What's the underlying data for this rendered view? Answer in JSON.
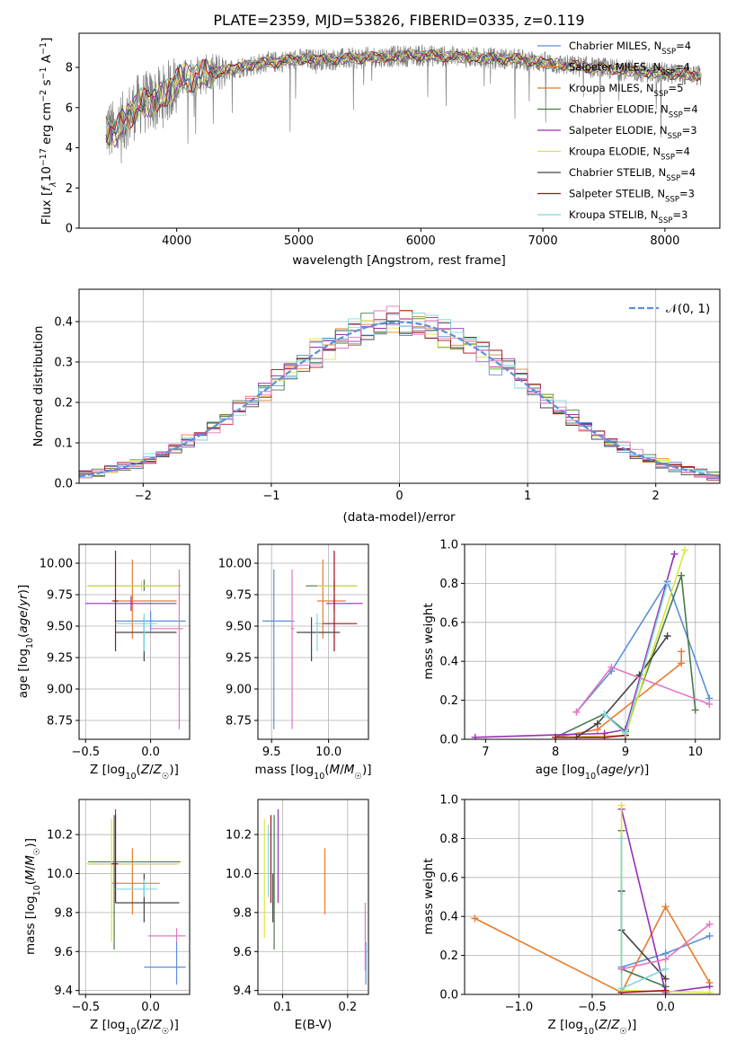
{
  "figure": {
    "title": "PLATE=2359, MJD=53826, FIBERID=0335, z=0.119"
  },
  "colors": {
    "spectrum": "#808080",
    "normal_curve": "#5b8fd9",
    "grid": "#b0b0b0"
  },
  "chart_data": [
    {
      "id": "spectrum",
      "type": "line",
      "title": "PLATE=2359, MJD=53826, FIBERID=0335, z=0.119",
      "xlabel": "wavelength [Angstrom, rest frame]",
      "ylabel": "Flux [f_λ10⁻¹⁷ erg cm⁻² s⁻¹ A⁻¹]",
      "xlim": [
        3200,
        8450
      ],
      "ylim": [
        0,
        9.7
      ],
      "xticks": [
        4000,
        5000,
        6000,
        7000,
        8000
      ],
      "yticks": [
        0,
        2,
        4,
        6,
        8
      ],
      "grid": false,
      "legend_position": "top-right",
      "continuum": {
        "x": [
          3420,
          3500,
          3600,
          3700,
          3800,
          3900,
          4000,
          4100,
          4200,
          4300,
          4500,
          4700,
          5000,
          5300,
          5600,
          6000,
          6400,
          6800,
          7200,
          7600,
          8000,
          8300
        ],
        "y": [
          5.0,
          4.7,
          5.6,
          6.2,
          6.3,
          6.6,
          7.3,
          7.5,
          7.6,
          7.7,
          8.0,
          8.2,
          8.4,
          8.4,
          8.5,
          8.6,
          8.5,
          8.4,
          8.1,
          7.9,
          7.7,
          7.6
        ]
      },
      "series": [
        {
          "name": "Chabrier MILES, N_SSP=4",
          "color": "#5b8fd9"
        },
        {
          "name": "Salpeter MILES, N_SSP=4",
          "color": "#e87b2c"
        },
        {
          "name": "Kroupa MILES, N_SSP=5",
          "color": "#de7f1f"
        },
        {
          "name": "Chabrier ELODIE, N_SSP=4",
          "color": "#4a7a4a"
        },
        {
          "name": "Salpeter ELODIE, N_SSP=3",
          "color": "#9a2fb5"
        },
        {
          "name": "Kroupa ELODIE, N_SSP=4",
          "color": "#dce53c"
        },
        {
          "name": "Chabrier STELIB, N_SSP=4",
          "color": "#444444"
        },
        {
          "name": "Salpeter STELIB, N_SSP=3",
          "color": "#a0101a"
        },
        {
          "name": "Kroupa STELIB, N_SSP=3",
          "color": "#7fd8e0"
        }
      ],
      "legend_labels": [
        {
          "main": "Chabrier MILES, N",
          "sub": "SSP",
          "tail": "=4"
        },
        {
          "main": "Salpeter MILES, N",
          "sub": "SSP",
          "tail": "=4"
        },
        {
          "main": "Kroupa MILES, N",
          "sub": "SSP",
          "tail": "=5"
        },
        {
          "main": "Chabrier ELODIE, N",
          "sub": "SSP",
          "tail": "=4"
        },
        {
          "main": "Salpeter ELODIE, N",
          "sub": "SSP",
          "tail": "=3"
        },
        {
          "main": "Kroupa ELODIE, N",
          "sub": "SSP",
          "tail": "=4"
        },
        {
          "main": "Chabrier STELIB, N",
          "sub": "SSP",
          "tail": "=4"
        },
        {
          "main": "Salpeter STELIB, N",
          "sub": "SSP",
          "tail": "=3"
        },
        {
          "main": "Kroupa STELIB, N",
          "sub": "SSP",
          "tail": "=3"
        }
      ]
    },
    {
      "id": "residuals",
      "type": "histogram",
      "xlabel": "(data-model)/error",
      "ylabel": "Normed distribution",
      "xlim": [
        -2.5,
        2.5
      ],
      "ylim": [
        0,
        0.48
      ],
      "xticks": [
        -2,
        -1,
        0,
        1,
        2
      ],
      "yticks": [
        0.0,
        0.1,
        0.2,
        0.3,
        0.4
      ],
      "grid": true,
      "bin_width": 0.1,
      "legend": {
        "label": "𝒩(0, 1)",
        "position": "top-right"
      },
      "series_colors": [
        "#5b8fd9",
        "#e87b2c",
        "#4a7a4a",
        "#9a2fb5",
        "#dce53c",
        "#444444",
        "#a0101a",
        "#7fd8e0",
        "#e377c2"
      ]
    },
    {
      "id": "age-vs-Z",
      "type": "errorbar",
      "xlabel": "Z [log₁₀(Z/Z☉)]",
      "ylabel": "age [log₁₀(age/yr)]",
      "xlim": [
        -0.55,
        0.3
      ],
      "ylim": [
        8.6,
        10.15
      ],
      "xticks": [
        -0.5,
        0.0
      ],
      "yticks": [
        8.75,
        9.0,
        9.25,
        9.5,
        9.75,
        10.0
      ],
      "grid": true,
      "points": [
        {
          "color": "#5b8fd9",
          "x": 0.0,
          "y": 9.54,
          "x_lo": -0.27,
          "x_hi": 0.27,
          "y_lo": 9.46,
          "y_hi": 9.62
        },
        {
          "color": "#e87b2c",
          "x": -0.14,
          "y": 9.7,
          "x_lo": -0.3,
          "x_hi": 0.2,
          "y_lo": 9.4,
          "y_hi": 10.03
        },
        {
          "color": "#4a7a4a",
          "x": -0.05,
          "y": 9.82,
          "x_lo": -0.48,
          "x_hi": 0.23,
          "y_lo": 9.78,
          "y_hi": 9.87
        },
        {
          "color": "#9a2fb5",
          "x": -0.15,
          "y": 9.68,
          "x_lo": -0.5,
          "x_hi": 0.2,
          "y_lo": 9.62,
          "y_hi": 9.74
        },
        {
          "color": "#dce53c",
          "x": -0.07,
          "y": 9.82,
          "x_lo": -0.49,
          "x_hi": 0.22,
          "y_lo": 9.78,
          "y_hi": 9.86
        },
        {
          "color": "#444444",
          "x": -0.05,
          "y": 9.45,
          "x_lo": -0.27,
          "x_hi": 0.2,
          "y_lo": 9.22,
          "y_hi": 9.57
        },
        {
          "color": "#a0101a",
          "x": -0.27,
          "y": 9.7,
          "x_lo": -0.29,
          "x_hi": -0.25,
          "y_lo": 9.3,
          "y_hi": 10.1
        },
        {
          "color": "#7fd8e0",
          "x": -0.05,
          "y": 9.52,
          "x_lo": -0.27,
          "x_hi": 0.05,
          "y_lo": 9.3,
          "y_hi": 9.6
        },
        {
          "color": "#e377c2",
          "x": 0.22,
          "y": 9.48,
          "x_lo": 0.0,
          "x_hi": 0.25,
          "y_lo": 8.68,
          "y_hi": 9.95
        }
      ]
    },
    {
      "id": "age-vs-mass",
      "type": "errorbar",
      "xlabel": "mass [log₁₀(M/M☉)]",
      "ylabel": "",
      "xlim": [
        9.38,
        10.35
      ],
      "ylim": [
        8.6,
        10.15
      ],
      "xticks": [
        9.5,
        10.0
      ],
      "yticks": [
        8.75,
        9.0,
        9.25,
        9.5,
        9.75,
        10.0
      ],
      "grid": true,
      "points": [
        {
          "color": "#5b8fd9",
          "x": 9.52,
          "y": 9.54,
          "x_lo": 9.42,
          "x_hi": 9.7,
          "y_lo": 8.68,
          "y_hi": 9.95
        },
        {
          "color": "#e87b2c",
          "x": 9.95,
          "y": 9.7,
          "x_lo": 9.9,
          "x_hi": 10.15,
          "y_lo": 9.4,
          "y_hi": 10.03
        },
        {
          "color": "#4a7a4a",
          "x": 10.05,
          "y": 9.82,
          "x_lo": 9.8,
          "x_hi": 10.25,
          "y_lo": 9.78,
          "y_hi": 9.87
        },
        {
          "color": "#9a2fb5",
          "x": 10.05,
          "y": 9.68,
          "x_lo": 9.98,
          "x_hi": 10.3,
          "y_lo": 9.62,
          "y_hi": 9.74
        },
        {
          "color": "#dce53c",
          "x": 10.05,
          "y": 9.82,
          "x_lo": 9.9,
          "x_hi": 10.25,
          "y_lo": 9.78,
          "y_hi": 9.86
        },
        {
          "color": "#444444",
          "x": 9.85,
          "y": 9.45,
          "x_lo": 9.72,
          "x_hi": 10.1,
          "y_lo": 9.22,
          "y_hi": 9.57
        },
        {
          "color": "#a0101a",
          "x": 10.05,
          "y": 9.52,
          "x_lo": 9.95,
          "x_hi": 10.25,
          "y_lo": 9.3,
          "y_hi": 10.1
        },
        {
          "color": "#7fd8e0",
          "x": 9.9,
          "y": 9.52,
          "x_lo": 9.88,
          "x_hi": 9.95,
          "y_lo": 9.3,
          "y_hi": 9.6
        },
        {
          "color": "#e377c2",
          "x": 9.68,
          "y": 9.48,
          "x_lo": 9.67,
          "x_hi": 9.7,
          "y_lo": 8.68,
          "y_hi": 9.95
        }
      ]
    },
    {
      "id": "mass-weight-vs-age",
      "type": "line",
      "xlabel": "age [log₁₀(age/yr)]",
      "ylabel": "mass weight",
      "xlim": [
        6.7,
        10.35
      ],
      "ylim": [
        0,
        1.0
      ],
      "xticks": [
        7,
        8,
        9,
        10
      ],
      "yticks": [
        0.0,
        0.2,
        0.4,
        0.6,
        0.8,
        1.0
      ],
      "grid": true,
      "series": [
        {
          "color": "#5b8fd9",
          "x": [
            8.3,
            8.8,
            9.6,
            10.2
          ],
          "y": [
            0.14,
            0.35,
            0.81,
            0.21
          ]
        },
        {
          "color": "#e87b2c",
          "x": [
            8.0,
            8.6,
            9.8,
            9.8
          ],
          "y": [
            0.01,
            0.05,
            0.39,
            0.45
          ]
        },
        {
          "color": "#4a7a4a",
          "x": [
            8.0,
            8.7,
            9.0,
            9.8,
            10.0
          ],
          "y": [
            0.01,
            0.13,
            0.04,
            0.84,
            0.15
          ]
        },
        {
          "color": "#9a2fb5",
          "x": [
            6.85,
            8.7,
            9.0,
            9.7
          ],
          "y": [
            0.01,
            0.03,
            0.05,
            0.95
          ]
        },
        {
          "color": "#dce53c",
          "x": [
            8.0,
            9.0,
            9.85
          ],
          "y": [
            0.01,
            0.02,
            0.97
          ]
        },
        {
          "color": "#444444",
          "x": [
            8.3,
            8.6,
            9.2,
            9.6
          ],
          "y": [
            0.01,
            0.08,
            0.33,
            0.53
          ]
        },
        {
          "color": "#a0101a",
          "x": [
            8.0,
            8.7,
            9.0
          ],
          "y": [
            0.01,
            0.01,
            0.02
          ]
        },
        {
          "color": "#7fd8e0",
          "x": [
            8.7,
            9.0,
            9.6
          ],
          "y": [
            0.13,
            0.03,
            0.8
          ]
        },
        {
          "color": "#e377c2",
          "x": [
            8.3,
            8.8,
            10.2
          ],
          "y": [
            0.14,
            0.37,
            0.18
          ]
        }
      ]
    },
    {
      "id": "mass-vs-Z",
      "type": "errorbar",
      "xlabel": "Z [log₁₀(Z/Z☉)]",
      "ylabel": "mass [log₁₀(M/M☉)]",
      "xlim": [
        -0.55,
        0.3
      ],
      "ylim": [
        9.38,
        10.38
      ],
      "xticks": [
        -0.5,
        0.0
      ],
      "yticks": [
        9.4,
        9.6,
        9.8,
        10.0,
        10.2
      ],
      "grid": true,
      "points": [
        {
          "color": "#5b8fd9",
          "x": 0.2,
          "y": 9.52,
          "x_lo": -0.05,
          "x_hi": 0.27,
          "y_lo": 9.43,
          "y_hi": 9.65
        },
        {
          "color": "#e87b2c",
          "x": -0.14,
          "y": 9.95,
          "x_lo": -0.3,
          "x_hi": 0.07,
          "y_lo": 9.79,
          "y_hi": 10.13
        },
        {
          "color": "#4a7a4a",
          "x": -0.28,
          "y": 10.06,
          "x_lo": -0.48,
          "x_hi": 0.23,
          "y_lo": 9.61,
          "y_hi": 10.3
        },
        {
          "color": "#9a2fb5",
          "x": -0.27,
          "y": 10.05,
          "x_lo": -0.48,
          "x_hi": 0.2,
          "y_lo": 9.85,
          "y_hi": 10.33
        },
        {
          "color": "#dce53c",
          "x": -0.3,
          "y": 10.05,
          "x_lo": -0.49,
          "x_hi": 0.22,
          "y_lo": 9.65,
          "y_hi": 10.28
        },
        {
          "color": "#444444",
          "x": -0.05,
          "y": 9.85,
          "x_lo": -0.27,
          "x_hi": 0.22,
          "y_lo": 9.75,
          "y_hi": 10.0
        },
        {
          "color": "#a0101a",
          "x": -0.27,
          "y": 10.05,
          "x_lo": -0.3,
          "x_hi": -0.25,
          "y_lo": 9.85,
          "y_hi": 10.3
        },
        {
          "color": "#7fd8e0",
          "x": -0.05,
          "y": 9.92,
          "x_lo": -0.27,
          "x_hi": 0.05,
          "y_lo": 9.88,
          "y_hi": 9.97
        },
        {
          "color": "#e377c2",
          "x": 0.2,
          "y": 9.68,
          "x_lo": -0.02,
          "x_hi": 0.27,
          "y_lo": 9.65,
          "y_hi": 9.72
        }
      ]
    },
    {
      "id": "mass-vs-EBV",
      "type": "errorbar",
      "xlabel": "E(B-V)",
      "ylabel": "",
      "xlim": [
        0.062,
        0.232
      ],
      "ylim": [
        9.38,
        10.38
      ],
      "xticks": [
        0.1,
        0.2
      ],
      "yticks": [
        9.4,
        9.6,
        9.8,
        10.0,
        10.2
      ],
      "grid": true,
      "points": [
        {
          "color": "#5b8fd9",
          "x": 0.228,
          "y": 9.52,
          "y_lo": 9.43,
          "y_hi": 9.65
        },
        {
          "color": "#e87b2c",
          "x": 0.165,
          "y": 9.95,
          "y_lo": 9.79,
          "y_hi": 10.13
        },
        {
          "color": "#4a7a4a",
          "x": 0.087,
          "y": 9.95,
          "y_lo": 9.61,
          "y_hi": 10.3
        },
        {
          "color": "#9a2fb5",
          "x": 0.093,
          "y": 10.05,
          "y_lo": 9.85,
          "y_hi": 10.33
        },
        {
          "color": "#dce53c",
          "x": 0.072,
          "y": 9.95,
          "y_lo": 9.67,
          "y_hi": 10.28
        },
        {
          "color": "#444444",
          "x": 0.085,
          "y": 9.9,
          "y_lo": 9.75,
          "y_hi": 10.0
        },
        {
          "color": "#a0101a",
          "x": 0.082,
          "y": 10.05,
          "y_lo": 9.85,
          "y_hi": 10.3
        },
        {
          "color": "#7fd8e0",
          "x": 0.078,
          "y": 10.0,
          "y_lo": 9.88,
          "y_hi": 10.25
        },
        {
          "color": "#e377c2",
          "x": 0.227,
          "y": 9.68,
          "y_lo": 9.5,
          "y_hi": 9.85
        }
      ]
    },
    {
      "id": "mass-weight-vs-Z",
      "type": "line",
      "xlabel": "Z [log₁₀(Z/Z☉)]",
      "ylabel": "mass weight",
      "xlim": [
        -1.37,
        0.37
      ],
      "ylim": [
        0,
        1.0
      ],
      "xticks": [
        -1.0,
        -0.5,
        0.0
      ],
      "yticks": [
        0.0,
        0.2,
        0.4,
        0.6,
        0.8,
        1.0
      ],
      "grid": true,
      "series": [
        {
          "color": "#5b8fd9",
          "x": [
            -0.3,
            0.0,
            0.3
          ],
          "y": [
            0.14,
            0.21,
            0.3
          ]
        },
        {
          "color": "#e87b2c",
          "x": [
            -1.3,
            -0.3,
            0.0,
            0.3
          ],
          "y": [
            0.39,
            0.01,
            0.45,
            0.06
          ]
        },
        {
          "color": "#4a7a4a",
          "x": [
            -0.3,
            -0.3,
            0.0
          ],
          "y": [
            0.84,
            0.13,
            0.04
          ]
        },
        {
          "color": "#9a2fb5",
          "x": [
            -0.3,
            0.0,
            0.3
          ],
          "y": [
            0.95,
            0.01,
            0.04
          ]
        },
        {
          "color": "#dce53c",
          "x": [
            -0.3,
            -0.3,
            0.3
          ],
          "y": [
            0.97,
            0.02,
            0.01
          ]
        },
        {
          "color": "#444444",
          "x": [
            -0.3,
            -0.3,
            0.0
          ],
          "y": [
            0.53,
            0.33,
            0.08
          ]
        },
        {
          "color": "#a0101a",
          "x": [
            -0.3,
            0.0
          ],
          "y": [
            0.01,
            0.02
          ]
        },
        {
          "color": "#7fd8e0",
          "x": [
            -0.3,
            -0.3,
            0.0
          ],
          "y": [
            0.8,
            0.03,
            0.13
          ]
        },
        {
          "color": "#e377c2",
          "x": [
            -0.3,
            0.0,
            0.3
          ],
          "y": [
            0.13,
            0.18,
            0.36
          ]
        }
      ]
    }
  ]
}
